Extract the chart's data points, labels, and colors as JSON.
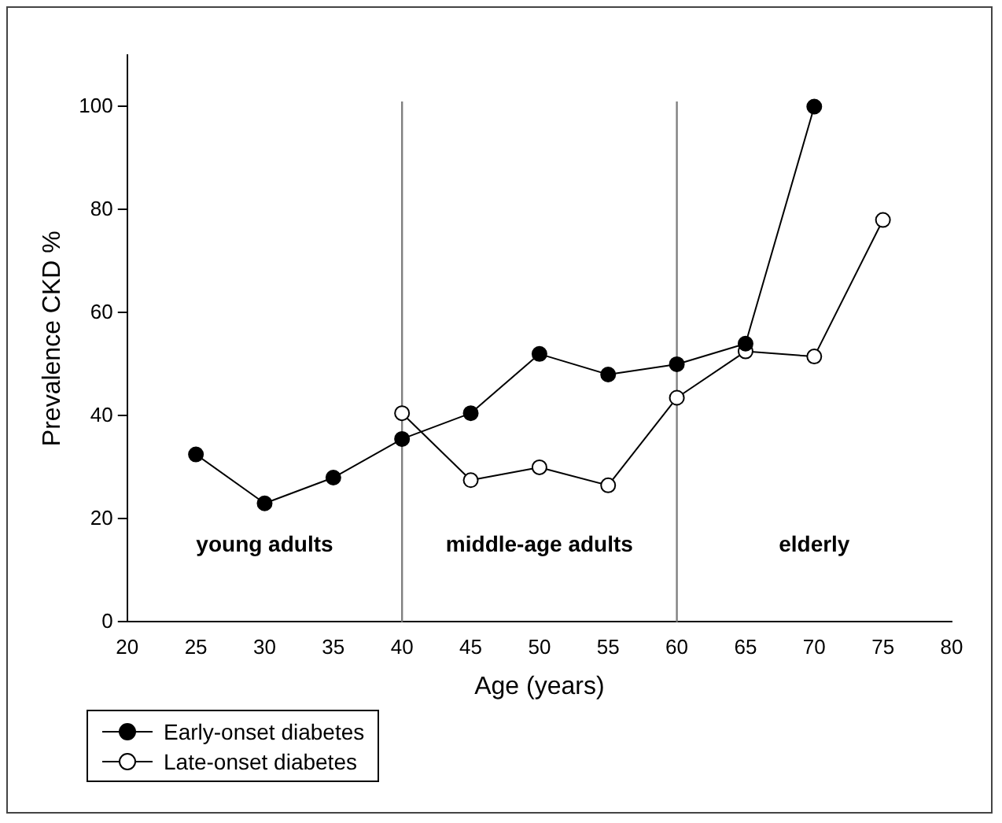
{
  "chart_data": {
    "type": "line",
    "xlabel": "Age (years)",
    "ylabel": "Prevalence CKD %",
    "xlim": [
      20,
      80
    ],
    "xticks": [
      20,
      25,
      30,
      35,
      40,
      45,
      50,
      55,
      60,
      65,
      70,
      75,
      80
    ],
    "ylim": [
      0,
      110
    ],
    "yticks": [
      0,
      20,
      40,
      60,
      80,
      100
    ],
    "grid": false,
    "legend": "bottom left",
    "marker": "circle",
    "line_style": "solid",
    "series": [
      {
        "name": "Early-onset diabetes",
        "color": "#000000",
        "x": [
          25,
          30,
          35,
          40,
          45,
          50,
          55,
          60,
          65,
          70
        ],
        "values": [
          32.5,
          23,
          28,
          35.5,
          40.5,
          52,
          48,
          50,
          54,
          100
        ]
      },
      {
        "name": "Late-onset diabetes",
        "color": "#ffffff",
        "x": [
          40,
          45,
          50,
          55,
          60,
          65,
          70,
          75
        ],
        "values": [
          40.5,
          27.5,
          30,
          26.5,
          43.5,
          52.5,
          51.5,
          78
        ]
      }
    ],
    "ref_lines": [
      {
        "axis": "x",
        "value": 40,
        "color": "#808080"
      },
      {
        "axis": "x",
        "value": 60,
        "color": "#808080"
      }
    ],
    "annotations": [
      "young adults",
      "middle-age adults",
      "elderly"
    ]
  }
}
